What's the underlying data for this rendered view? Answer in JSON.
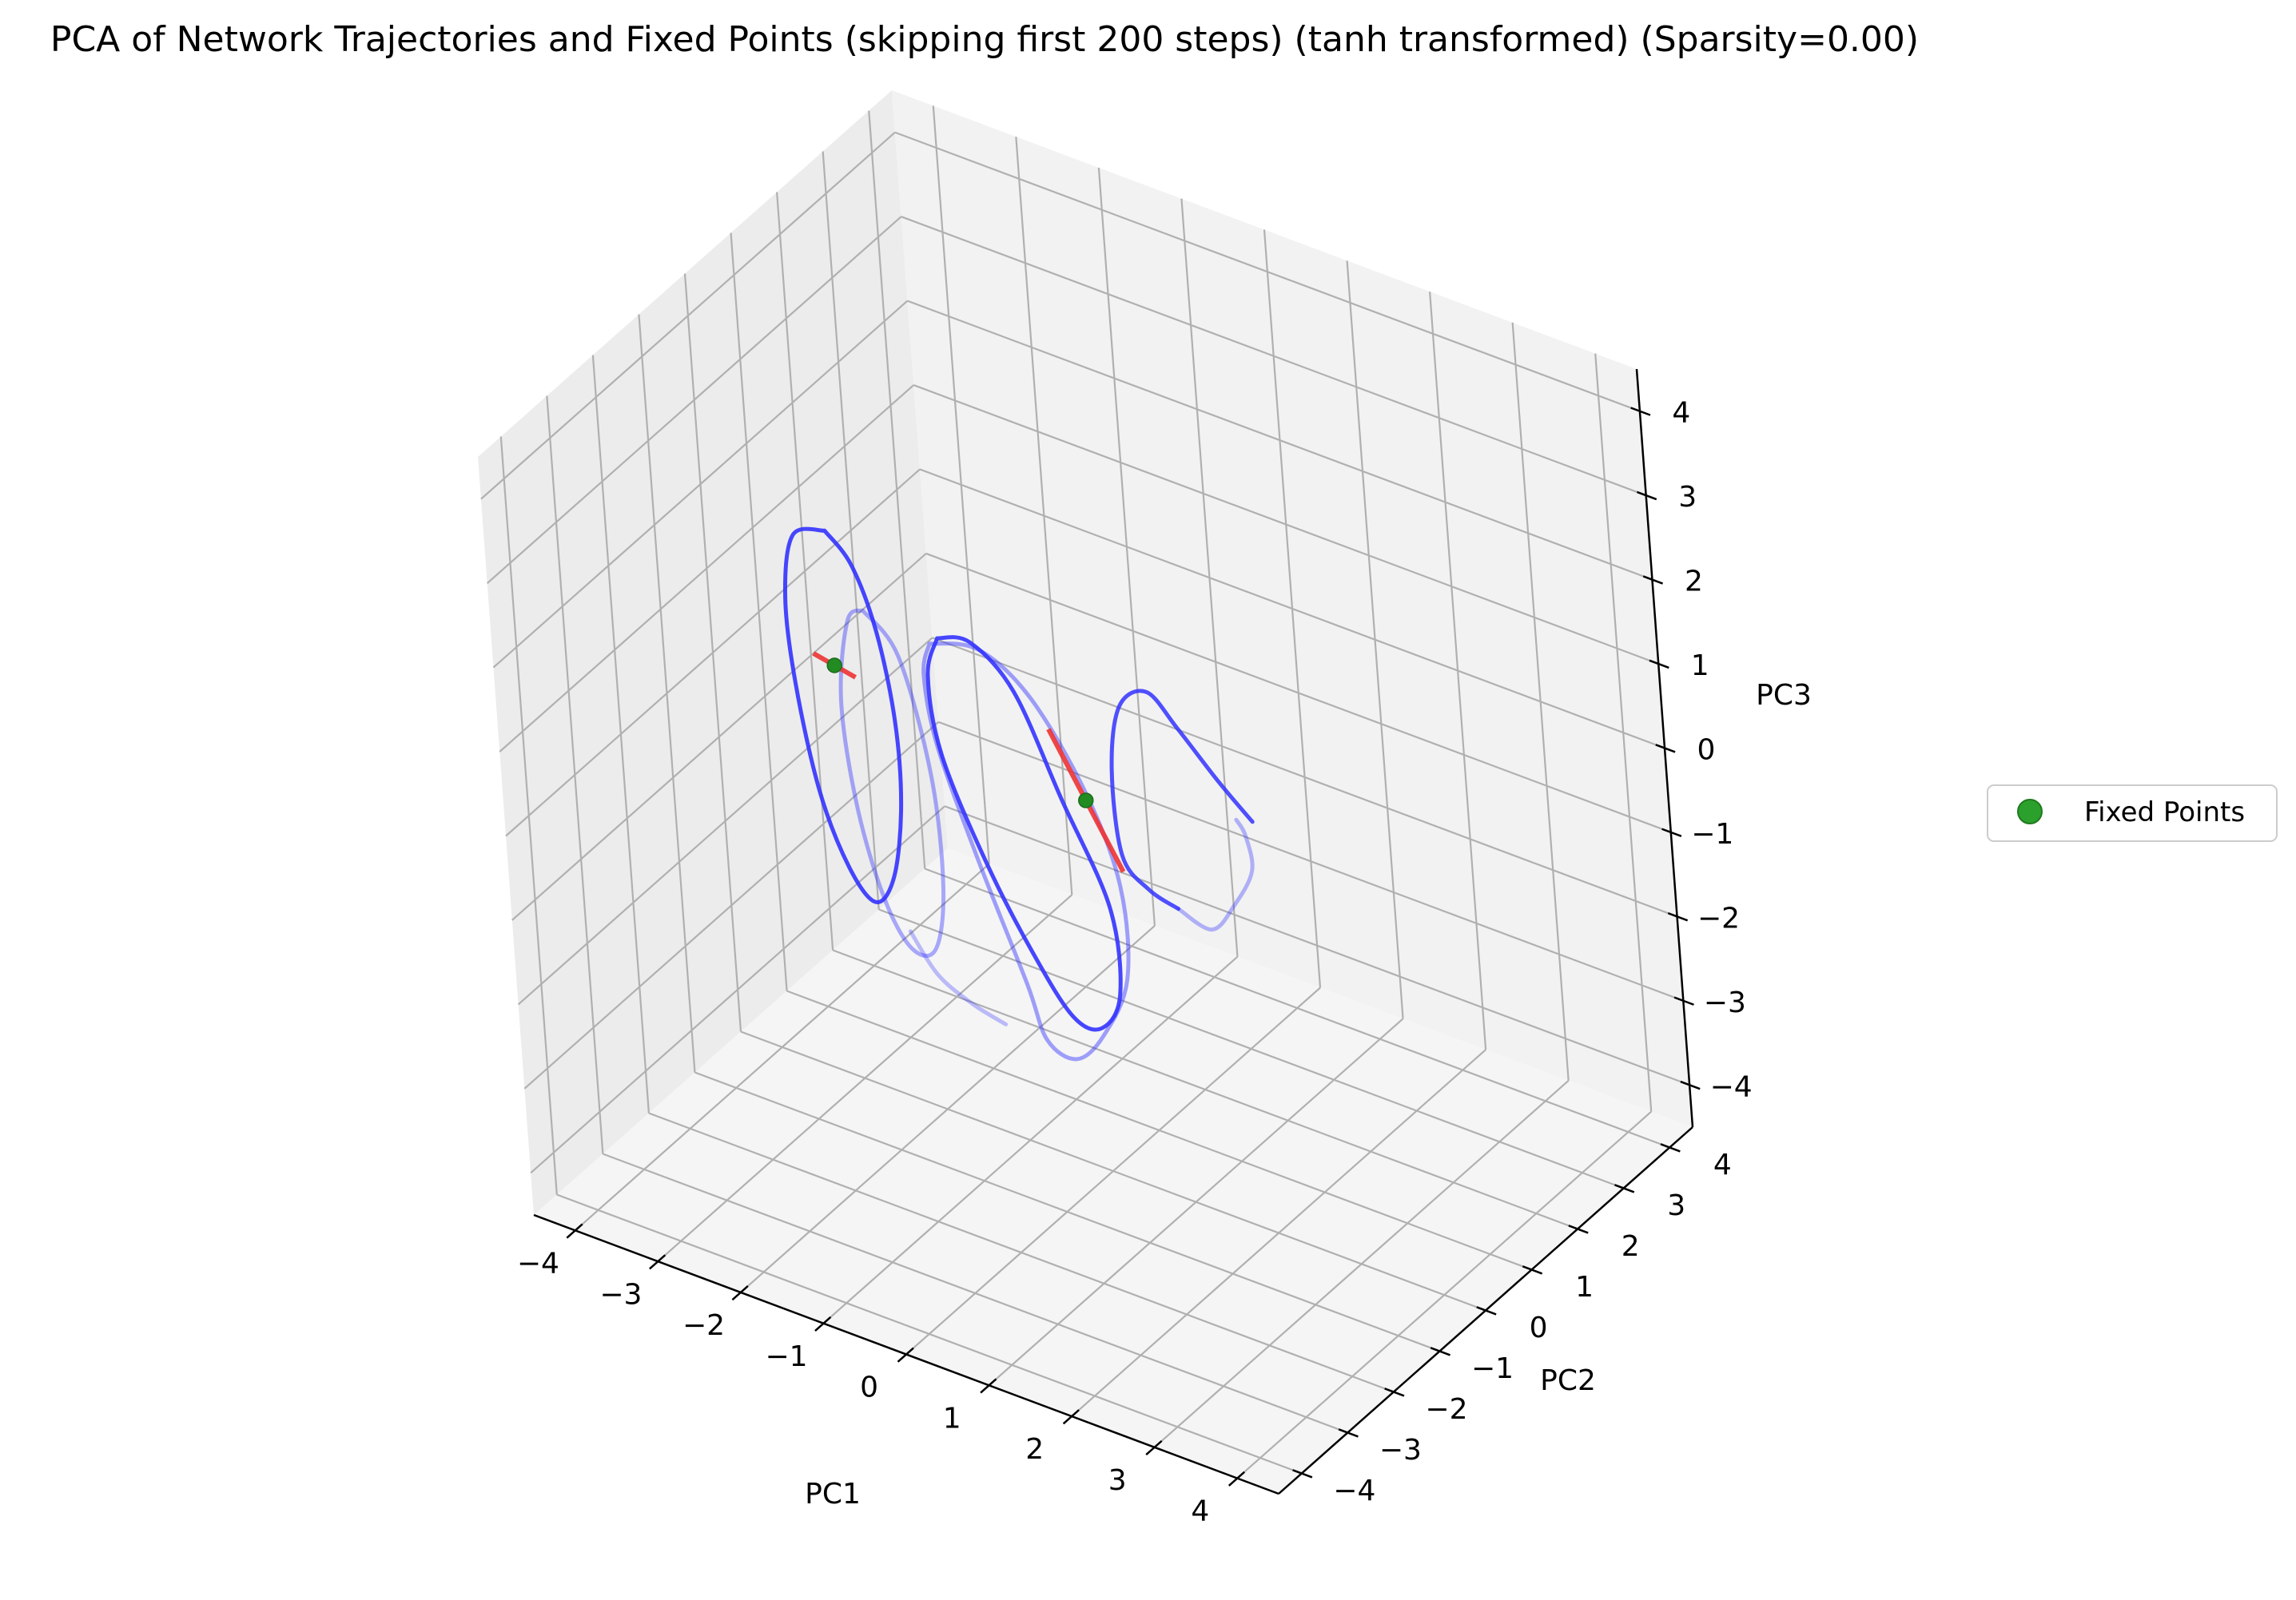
{
  "chart_data": {
    "type": "line",
    "title": "PCA of Network Trajectories and Fixed Points (skipping first 200 steps) (tanh transformed) (Sparsity=0.00)",
    "xlabel": "PC1",
    "ylabel": "PC2",
    "zlabel": "PC3",
    "xlim": [
      -4.5,
      4.5
    ],
    "ylim": [
      -4.5,
      4.5
    ],
    "zlim": [
      -4.5,
      4.5
    ],
    "xticks": [
      "−4",
      "−3",
      "−2",
      "−1",
      "0",
      "1",
      "2",
      "3",
      "4"
    ],
    "yticks": [
      "−4",
      "−3",
      "−2",
      "−1",
      "0",
      "1",
      "2",
      "3",
      "4"
    ],
    "zticks": [
      "−4",
      "−3",
      "−2",
      "−1",
      "0",
      "1",
      "2",
      "3",
      "4"
    ],
    "grid": true,
    "legend": {
      "placement": "center-right",
      "entries": [
        {
          "label": "Fixed Points",
          "color": "#2ca02c",
          "marker": "circle"
        }
      ]
    },
    "colors": {
      "trajectory": "#3333ff",
      "fixed_point": "#228b22",
      "unstable_direction": "#ee3333"
    },
    "fixed_points": [
      {
        "pc1": -3.0,
        "pc2": 0.0,
        "pc3": 0.4
      },
      {
        "pc1": 0.0,
        "pc2": 0.0,
        "pc3": -0.1
      }
    ],
    "unstable_directions": [
      {
        "from": [
          -3.25,
          0.0,
          0.45
        ],
        "to": [
          -2.75,
          0.0,
          0.35
        ]
      },
      {
        "from": [
          -0.4,
          0.0,
          0.6
        ],
        "to": [
          0.4,
          0.0,
          -0.8
        ]
      }
    ],
    "series": [
      {
        "opacity": 0.9,
        "points": [
          [
            -3.0,
            0.0,
            2.0
          ],
          [
            -2.7,
            0.0,
            1.7
          ],
          [
            -2.45,
            0.0,
            1.0
          ],
          [
            -2.3,
            0.0,
            0.0
          ],
          [
            -2.3,
            0.0,
            -1.0
          ],
          [
            -2.45,
            0.0,
            -1.9
          ],
          [
            -2.7,
            0.0,
            -2.3
          ],
          [
            -3.0,
            0.0,
            -2.0
          ],
          [
            -3.3,
            0.0,
            -1.2
          ],
          [
            -3.5,
            0.0,
            0.0
          ],
          [
            -3.55,
            0.0,
            1.0
          ],
          [
            -3.4,
            0.0,
            1.8
          ],
          [
            -3.0,
            0.0,
            2.0
          ]
        ]
      },
      {
        "opacity": 0.4,
        "points": [
          [
            -2.6,
            0.0,
            1.2
          ],
          [
            -2.2,
            0.0,
            0.8
          ],
          [
            -1.9,
            0.0,
            -0.5
          ],
          [
            -1.85,
            0.0,
            -1.8
          ],
          [
            -2.0,
            0.0,
            -2.6
          ],
          [
            -2.3,
            0.0,
            -2.7
          ],
          [
            -2.6,
            0.0,
            -2.2
          ],
          [
            -2.85,
            0.0,
            -1.2
          ],
          [
            -2.95,
            0.0,
            0.0
          ],
          [
            -2.8,
            0.0,
            1.0
          ],
          [
            -2.6,
            0.0,
            1.2
          ]
        ]
      },
      {
        "opacity": 0.3,
        "points": [
          [
            -2.3,
            0.0,
            -2.5
          ],
          [
            -2.0,
            0.0,
            -2.9
          ],
          [
            -1.6,
            0.0,
            -3.1
          ],
          [
            -1.2,
            0.0,
            -3.2
          ]
        ]
      },
      {
        "opacity": 0.9,
        "points": [
          [
            -1.7,
            0.0,
            1.2
          ],
          [
            -1.3,
            0.0,
            1.3
          ],
          [
            -0.8,
            0.0,
            0.9
          ],
          [
            -0.3,
            0.0,
            -0.2
          ],
          [
            0.2,
            0.0,
            -1.3
          ],
          [
            0.25,
            0.0,
            -2.3
          ],
          [
            0.0,
            0.0,
            -2.8
          ],
          [
            -0.35,
            0.0,
            -2.8
          ],
          [
            -0.8,
            0.0,
            -2.2
          ],
          [
            -1.3,
            0.0,
            -1.3
          ],
          [
            -1.75,
            0.0,
            -0.2
          ],
          [
            -1.85,
            0.0,
            0.7
          ],
          [
            -1.7,
            0.0,
            1.2
          ]
        ]
      },
      {
        "opacity": 0.45,
        "points": [
          [
            -1.8,
            0.0,
            1.1
          ],
          [
            -1.2,
            0.0,
            1.25
          ],
          [
            -0.6,
            0.0,
            0.9
          ],
          [
            0.0,
            0.0,
            0.0
          ],
          [
            0.35,
            0.0,
            -1.0
          ],
          [
            0.35,
            0.0,
            -2.1
          ],
          [
            0.0,
            0.0,
            -2.9
          ],
          [
            -0.35,
            0.0,
            -3.3
          ],
          [
            -0.7,
            0.0,
            -3.2
          ],
          [
            -0.9,
            0.0,
            -2.6
          ],
          [
            -1.4,
            0.0,
            -1.3
          ],
          [
            -1.8,
            0.0,
            -0.1
          ],
          [
            -1.9,
            0.0,
            0.7
          ],
          [
            -1.8,
            0.0,
            1.1
          ]
        ]
      },
      {
        "opacity": 0.85,
        "points": [
          [
            1.05,
            0.0,
            -1.0
          ],
          [
            0.7,
            0.0,
            -0.9
          ],
          [
            0.4,
            0.0,
            -0.6
          ],
          [
            0.35,
            0.0,
            0.4
          ],
          [
            0.5,
            0.0,
            1.2
          ],
          [
            0.85,
            0.0,
            1.5
          ],
          [
            1.2,
            0.0,
            1.2
          ],
          [
            1.65,
            0.0,
            0.75
          ],
          [
            2.05,
            0.0,
            0.4
          ]
        ]
      },
      {
        "opacity": 0.35,
        "points": [
          [
            1.05,
            0.0,
            -1.0
          ],
          [
            1.45,
            0.0,
            -1.1
          ],
          [
            1.75,
            0.0,
            -0.7
          ],
          [
            2.0,
            0.0,
            -0.2
          ],
          [
            1.95,
            0.0,
            0.2
          ],
          [
            1.85,
            0.0,
            0.35
          ]
        ]
      }
    ]
  }
}
